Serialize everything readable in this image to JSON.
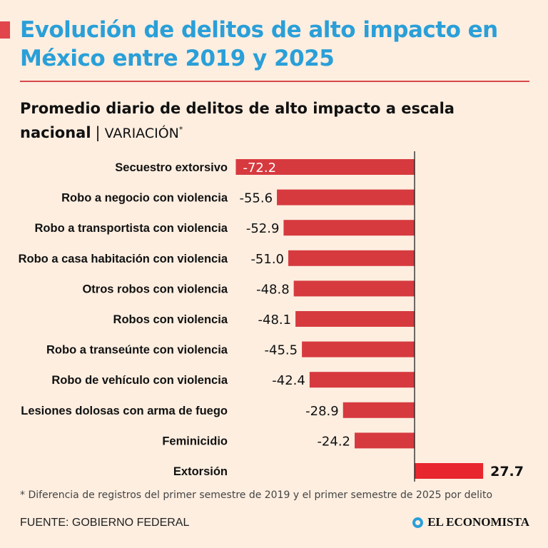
{
  "header": {
    "title": "Evolución de delitos de alto impacto en México entre 2019 y 2025",
    "subtitle_bold": "Promedio diario de delitos de alto impacto a escala nacional",
    "subtitle_separator": "|",
    "subtitle_light": "VARIACIÓN",
    "subtitle_mark": "*"
  },
  "footer": {
    "footnote": "* Diferencia de registros del primer semestre de 2019 y el primer semestre de 2025 por delito",
    "source": "FUENTE: GOBIERNO FEDERAL",
    "logo_text": "EL ECONOMISTA"
  },
  "colors": {
    "background": "#fdeee0",
    "bar": "#d63a3f",
    "positive_bar": "#e8262e",
    "title": "#2a9fd8",
    "axis": "#111111"
  },
  "chart_data": {
    "type": "bar",
    "orientation": "horizontal",
    "categories": [
      "Secuestro extorsivo",
      "Robo a negocio con violencia",
      "Robo a transportista con violencia",
      "Robo a casa habitación con violencia",
      "Otros robos con violencia",
      "Robos con violencia",
      "Robo a transeúnte con violencia",
      "Robo de vehículo con violencia",
      "Lesiones dolosas con arma de fuego",
      "Feminicidio",
      "Extorsión"
    ],
    "values": [
      -72.2,
      -55.6,
      -52.9,
      -51.0,
      -48.8,
      -48.1,
      -45.5,
      -42.4,
      -28.9,
      -24.2,
      27.7
    ],
    "value_labels": [
      "-72.2",
      "-55.6",
      "-52.9",
      "-51.0",
      "-48.8",
      "-48.1",
      "-45.5",
      "-42.4",
      "-28.9",
      "-24.2",
      "27.7"
    ],
    "xlim": [
      -72.2,
      27.7
    ],
    "grid": false,
    "legend": "none"
  }
}
